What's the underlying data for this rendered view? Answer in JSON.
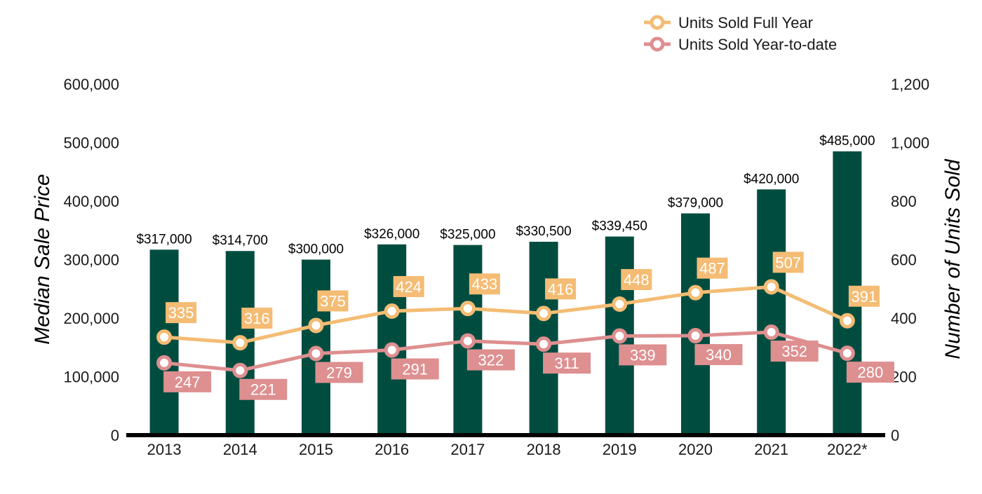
{
  "chart_data": {
    "type": "bar+line",
    "categories": [
      "2013",
      "2014",
      "2015",
      "2016",
      "2017",
      "2018",
      "2019",
      "2020",
      "2021",
      "2022*"
    ],
    "bars": {
      "values": [
        317000,
        314700,
        300000,
        326000,
        325000,
        330500,
        339450,
        379000,
        420000,
        485000
      ],
      "labels": [
        "$317,000",
        "$314,700",
        "$300,000",
        "$326,000",
        "$325,000",
        "$330,500",
        "$339,450",
        "$379,000",
        "$420,000",
        "$485,000"
      ],
      "color": "#004d40"
    },
    "series": [
      {
        "name": "Units Sold Full Year",
        "values": [
          335,
          316,
          375,
          424,
          433,
          416,
          448,
          487,
          507,
          391
        ],
        "color": "#f4bc74"
      },
      {
        "name": "Units Sold Year-to-date",
        "values": [
          247,
          221,
          279,
          291,
          322,
          311,
          339,
          340,
          352,
          280
        ],
        "color": "#de8f90"
      }
    ],
    "y_left": {
      "label": "Median Sale Price",
      "ylim": [
        0,
        600000
      ],
      "ticks": [
        "600,000",
        "500,000",
        "400,000",
        "300,000",
        "200,000",
        "100,000",
        "0"
      ]
    },
    "y_right": {
      "label": "Number of Units Sold",
      "ylim": [
        0,
        1200
      ],
      "ticks": [
        "1,200",
        "1,000",
        "800",
        "600",
        "400",
        "200",
        "0"
      ]
    },
    "legend_position": "top-right",
    "grid": false
  }
}
